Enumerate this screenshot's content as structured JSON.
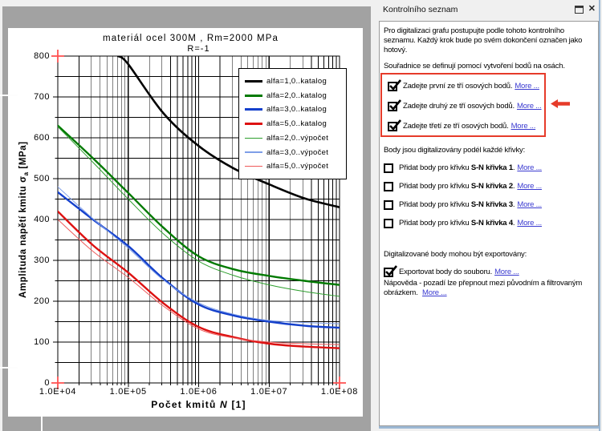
{
  "colors": {
    "app_bg": "#f0f0f0",
    "workspace_gray": "#a2a2a2",
    "chart_bg": "#ffffff",
    "accent_red": "#e63b2a",
    "link_blue": "#3a3ad0",
    "panel_border_gray": "#9b9b9b",
    "panel_border_blue": "#9cb8d4"
  },
  "panel": {
    "title": "Kontrolního seznam",
    "close_glyph": "✕",
    "intro1": "Pro digitalizaci grafu postupujte podle tohoto kontrolního seznamu. Každý krok bude po svém dokončení označen jako hotový.",
    "intro2": "Souřadnice se definují pomocí vytvoření bodů na osách.",
    "axis_items": [
      {
        "checked": true,
        "text": "Zadejte první ze tří osových bodů.",
        "link": "More ..."
      },
      {
        "checked": true,
        "text": "Zadejte druhý ze tří osových bodů.",
        "link": "More ..."
      },
      {
        "checked": true,
        "text": "Zadejte třetí ze tří osových bodů.",
        "link": "More ..."
      }
    ],
    "curves_heading": "Body jsou digitalizovány podél každé křivky:",
    "curve_items": [
      {
        "checked": false,
        "prefix": "Přidat body pro křivku ",
        "bold": "S-N křivka 1",
        "suffix": ".",
        "link": "More ..."
      },
      {
        "checked": false,
        "prefix": "Přidat body pro křivku ",
        "bold": "S-N křivka 2",
        "suffix": ".",
        "link": "More ..."
      },
      {
        "checked": false,
        "prefix": "Přidat body pro křivku ",
        "bold": "S-N křivka 3",
        "suffix": ".",
        "link": "More ..."
      },
      {
        "checked": false,
        "prefix": "Přidat body pro křivku ",
        "bold": "S-N křivka 4",
        "suffix": ".",
        "link": "More ..."
      }
    ],
    "export_heading": "Digitalizované body mohou být exportovány:",
    "export_items": [
      {
        "checked": true,
        "text": "Exportovat body do souboru.",
        "link": "More ..."
      }
    ],
    "help_text": "Nápověda - pozadí lze přepnout mezi původním a filtrovaným obrázkem.",
    "help_link": "More ..."
  },
  "chart_data": {
    "type": "line",
    "title": "materiál ocel 300M , Rm=2000 MPa",
    "subtitle": "R=-1",
    "xlabel": "Počet kmitů N [1]",
    "xlabel_parts": {
      "pre": "Počet kmitů ",
      "var": "N",
      "post": "  [1]"
    },
    "ylabel": "Amplituda napětí kmitu σa [MPa]",
    "ylabel_parts": {
      "pre": "Amplituda napětí kmitu ",
      "sym": "σ",
      "sub": "a",
      "post": " [MPa]"
    },
    "x_scale": "log",
    "xlim": [
      10000,
      100000000
    ],
    "ylim": [
      0,
      800
    ],
    "x_ticks": [
      10000,
      100000,
      1000000,
      10000000,
      100000000
    ],
    "x_tick_labels": [
      "1.0E+04",
      "1.0E+05",
      "1.0E+06",
      "1.0E+07",
      "1.0E+08"
    ],
    "y_tick_step": 100,
    "y_minor_step": 50,
    "y_tick_labels": [
      "0",
      "100",
      "200",
      "300",
      "400",
      "500",
      "600",
      "700",
      "800"
    ],
    "grid": true,
    "legend_position": "upper right",
    "axis_marker_color": "#ff5252",
    "axis_point_markers": [
      [
        10000,
        800
      ],
      [
        10000,
        0
      ],
      [
        100000000,
        0
      ]
    ],
    "series": [
      {
        "name": "alfa=1,0..katalog",
        "color": "#000000",
        "width": 2.6,
        "points": [
          [
            72000,
            800
          ],
          [
            100000,
            780
          ],
          [
            316000,
            660
          ],
          [
            1000000,
            580
          ],
          [
            3160000,
            525
          ],
          [
            10000000,
            486
          ],
          [
            31600000,
            452
          ],
          [
            100000000,
            430
          ]
        ]
      },
      {
        "name": "alfa=2,0..katalog",
        "color": "#007a00",
        "width": 2.4,
        "points": [
          [
            10000,
            630
          ],
          [
            31600,
            550
          ],
          [
            100000,
            465
          ],
          [
            316000,
            380
          ],
          [
            1000000,
            310
          ],
          [
            3160000,
            278
          ],
          [
            10000000,
            262
          ],
          [
            31600000,
            250
          ],
          [
            100000000,
            240
          ]
        ]
      },
      {
        "name": "alfa=3,0..katalog",
        "color": "#1440cc",
        "width": 2.4,
        "points": [
          [
            10000,
            467
          ],
          [
            31600,
            400
          ],
          [
            100000,
            335
          ],
          [
            316000,
            255
          ],
          [
            1000000,
            192
          ],
          [
            3160000,
            165
          ],
          [
            10000000,
            150
          ],
          [
            31600000,
            140
          ],
          [
            100000000,
            135
          ]
        ]
      },
      {
        "name": "alfa=5,0..katalog",
        "color": "#dd1111",
        "width": 2.4,
        "points": [
          [
            10000,
            420
          ],
          [
            31600,
            337
          ],
          [
            100000,
            270
          ],
          [
            316000,
            195
          ],
          [
            1000000,
            137
          ],
          [
            3160000,
            112
          ],
          [
            10000000,
            96
          ],
          [
            31600000,
            89
          ],
          [
            100000000,
            85
          ]
        ]
      },
      {
        "name": "alfa=2,0..výpočet",
        "color": "#2d9e2d",
        "width": 1,
        "points": [
          [
            10000,
            627
          ],
          [
            31600,
            540
          ],
          [
            100000,
            450
          ],
          [
            316000,
            365
          ],
          [
            1000000,
            298
          ],
          [
            3160000,
            263
          ],
          [
            10000000,
            240
          ],
          [
            31600000,
            224
          ],
          [
            100000000,
            212
          ]
        ]
      },
      {
        "name": "alfa=3,0..výpočet",
        "color": "#7e9ee8",
        "width": 1,
        "points": [
          [
            10000,
            480
          ],
          [
            31600,
            402
          ],
          [
            100000,
            330
          ],
          [
            316000,
            252
          ],
          [
            1000000,
            196
          ],
          [
            3160000,
            168
          ],
          [
            10000000,
            153
          ],
          [
            31600000,
            148
          ],
          [
            100000000,
            145
          ]
        ]
      },
      {
        "name": "alfa=5,0..výpočet",
        "color": "#ee5a5a",
        "width": 1,
        "points": [
          [
            10000,
            400
          ],
          [
            31600,
            322
          ],
          [
            100000,
            258
          ],
          [
            316000,
            188
          ],
          [
            1000000,
            132
          ],
          [
            3160000,
            110
          ],
          [
            10000000,
            100
          ],
          [
            31600000,
            96
          ],
          [
            100000000,
            94
          ]
        ]
      }
    ]
  }
}
